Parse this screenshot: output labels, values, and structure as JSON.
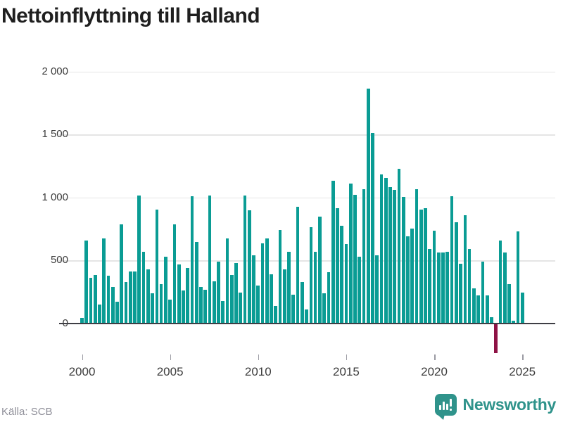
{
  "title": "Nettoinflyttning till Halland",
  "footer": {
    "source": "Källa: SCB",
    "logo_text": "Newsworthy"
  },
  "colors": {
    "bar": "#0a9c94",
    "negative_bar": "#8e1245",
    "grid": "#e5e5e5",
    "axis": "#3e3e44",
    "title": "#1f1f1f",
    "tick_label": "#3d3d3d",
    "source": "#8f8f99",
    "logo": "#2f938b"
  },
  "axes": {
    "y_ticks": [
      {
        "value": 0,
        "label": "0"
      },
      {
        "value": 500,
        "label": "500"
      },
      {
        "value": 1000,
        "label": "1 000"
      },
      {
        "value": 1500,
        "label": "1 500"
      },
      {
        "value": 2000,
        "label": "2 000"
      }
    ],
    "x_ticks": [
      {
        "value": 2000,
        "label": "2000"
      },
      {
        "value": 2005,
        "label": "2005"
      },
      {
        "value": 2010,
        "label": "2010"
      },
      {
        "value": 2015,
        "label": "2015"
      },
      {
        "value": 2020,
        "label": "2020"
      },
      {
        "value": 2025,
        "label": "2025"
      }
    ]
  },
  "chart_data": {
    "type": "bar",
    "title": "Nettoinflyttning till Halland",
    "source": "Källa: SCB",
    "frequency": "quarterly",
    "x_start": "2000 Q1",
    "x_end": "2025 Q1",
    "xlabel": "",
    "ylabel": "",
    "ylim": [
      -250,
      2000
    ],
    "grid": "horizontal",
    "legend": "none",
    "y_ticks": [
      0,
      500,
      1000,
      1500,
      2000
    ],
    "x_tick_years": [
      2000,
      2005,
      2010,
      2015,
      2020,
      2025
    ],
    "categories": [
      "2000 Q1",
      "2000 Q2",
      "2000 Q3",
      "2000 Q4",
      "2001 Q1",
      "2001 Q2",
      "2001 Q3",
      "2001 Q4",
      "2002 Q1",
      "2002 Q2",
      "2002 Q3",
      "2002 Q4",
      "2003 Q1",
      "2003 Q2",
      "2003 Q3",
      "2003 Q4",
      "2004 Q1",
      "2004 Q2",
      "2004 Q3",
      "2004 Q4",
      "2005 Q1",
      "2005 Q2",
      "2005 Q3",
      "2005 Q4",
      "2006 Q1",
      "2006 Q2",
      "2006 Q3",
      "2006 Q4",
      "2007 Q1",
      "2007 Q2",
      "2007 Q3",
      "2007 Q4",
      "2008 Q1",
      "2008 Q2",
      "2008 Q3",
      "2008 Q4",
      "2009 Q1",
      "2009 Q2",
      "2009 Q3",
      "2009 Q4",
      "2010 Q1",
      "2010 Q2",
      "2010 Q3",
      "2010 Q4",
      "2011 Q1",
      "2011 Q2",
      "2011 Q3",
      "2011 Q4",
      "2012 Q1",
      "2012 Q2",
      "2012 Q3",
      "2012 Q4",
      "2013 Q1",
      "2013 Q2",
      "2013 Q3",
      "2013 Q4",
      "2014 Q1",
      "2014 Q2",
      "2014 Q3",
      "2014 Q4",
      "2015 Q1",
      "2015 Q2",
      "2015 Q3",
      "2015 Q4",
      "2016 Q1",
      "2016 Q2",
      "2016 Q3",
      "2016 Q4",
      "2017 Q1",
      "2017 Q2",
      "2017 Q3",
      "2017 Q4",
      "2018 Q1",
      "2018 Q2",
      "2018 Q3",
      "2018 Q4",
      "2019 Q1",
      "2019 Q2",
      "2019 Q3",
      "2019 Q4",
      "2020 Q1",
      "2020 Q2",
      "2020 Q3",
      "2020 Q4",
      "2021 Q1",
      "2021 Q2",
      "2021 Q3",
      "2021 Q4",
      "2022 Q1",
      "2022 Q2",
      "2022 Q3",
      "2022 Q4",
      "2023 Q1",
      "2023 Q2",
      "2023 Q3",
      "2023 Q4",
      "2024 Q1",
      "2024 Q2",
      "2024 Q3",
      "2024 Q4",
      "2025 Q1"
    ],
    "values": [
      45,
      655,
      360,
      385,
      150,
      675,
      375,
      290,
      170,
      785,
      330,
      410,
      410,
      1015,
      570,
      430,
      240,
      905,
      310,
      530,
      185,
      785,
      465,
      260,
      440,
      1010,
      645,
      290,
      265,
      1015,
      335,
      490,
      175,
      675,
      385,
      480,
      245,
      1015,
      895,
      540,
      300,
      635,
      675,
      390,
      140,
      740,
      430,
      570,
      225,
      925,
      325,
      110,
      765,
      570,
      850,
      240,
      405,
      1130,
      915,
      775,
      630,
      1110,
      1020,
      530,
      1065,
      1865,
      1510,
      540,
      1180,
      1155,
      1080,
      1060,
      1225,
      1005,
      690,
      755,
      1065,
      905,
      915,
      590,
      735,
      560,
      560,
      570,
      1010,
      805,
      475,
      860,
      590,
      275,
      220,
      490,
      220,
      50,
      -235,
      660,
      560,
      310,
      20,
      730,
      245
    ]
  }
}
